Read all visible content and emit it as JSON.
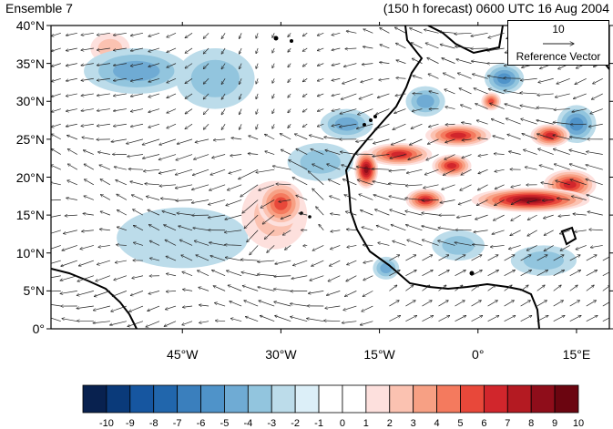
{
  "header": {
    "left_title": "Ensemble 7",
    "right_title": "(150 h forecast) 0600 UTC 16 Aug 2004"
  },
  "reference_vector": {
    "magnitude": "10",
    "label": "Reference Vector"
  },
  "chart_data": {
    "type": "heatmap",
    "description_kind": "map",
    "x_range_deg": [
      -65,
      20
    ],
    "y_range_deg": [
      0,
      40
    ],
    "y_ticks": [
      {
        "value": 40,
        "label": "40°N"
      },
      {
        "value": 35,
        "label": "35°N"
      },
      {
        "value": 30,
        "label": "30°N"
      },
      {
        "value": 25,
        "label": "25°N"
      },
      {
        "value": 20,
        "label": "20°N"
      },
      {
        "value": 15,
        "label": "15°N"
      },
      {
        "value": 10,
        "label": "10°N"
      },
      {
        "value": 5,
        "label": "5°N"
      },
      {
        "value": 0,
        "label": "0°"
      }
    ],
    "x_ticks": [
      {
        "value": -45,
        "label": "45°W"
      },
      {
        "value": -30,
        "label": "30°W"
      },
      {
        "value": -15,
        "label": "15°W"
      },
      {
        "value": 0,
        "label": "0°"
      },
      {
        "value": 15,
        "label": "15°E"
      }
    ],
    "colorbar": {
      "labels": [
        "-10",
        "-9",
        "-8",
        "-7",
        "-6",
        "-5",
        "-4",
        "-3",
        "-2",
        "-1",
        "0",
        "1",
        "2",
        "3",
        "4",
        "5",
        "6",
        "7",
        "8",
        "9",
        "10"
      ],
      "colors": [
        "#08214f",
        "#0a3a7a",
        "#1656a0",
        "#2166ac",
        "#3a7fbd",
        "#4f93c9",
        "#6fabd4",
        "#92c5de",
        "#bcdcea",
        "#dceff8",
        "#ffffff",
        "#ffffff",
        "#fde0dd",
        "#fbc2b1",
        "#f7a084",
        "#f47a5e",
        "#e8483a",
        "#d1262c",
        "#b41a22",
        "#8f0d1a",
        "#6b0510"
      ]
    },
    "anomaly_blobs": [
      {
        "lon": -52,
        "lat": 34,
        "rx": 8,
        "ry": 3,
        "value": -3
      },
      {
        "lon": -40,
        "lat": 33,
        "rx": 6,
        "ry": 4,
        "value": -2
      },
      {
        "lon": -56,
        "lat": 37,
        "rx": 3,
        "ry": 2,
        "value": 2
      },
      {
        "lon": -30,
        "lat": 16.5,
        "rx": 3.5,
        "ry": 3,
        "value": 5
      },
      {
        "lon": -31,
        "lat": 15,
        "rx": 5,
        "ry": 4.5,
        "value": 2
      },
      {
        "lon": -24,
        "lat": 22,
        "rx": 5,
        "ry": 2.5,
        "value": -2
      },
      {
        "lon": -20,
        "lat": 27,
        "rx": 4,
        "ry": 2,
        "value": -3
      },
      {
        "lon": -17,
        "lat": 21,
        "rx": 1.8,
        "ry": 2.5,
        "value": 8
      },
      {
        "lon": -12,
        "lat": 23,
        "rx": 5,
        "ry": 1.5,
        "value": 6
      },
      {
        "lon": -3,
        "lat": 25.5,
        "rx": 5,
        "ry": 1.5,
        "value": 6
      },
      {
        "lon": 8,
        "lat": 17,
        "rx": 9,
        "ry": 1.6,
        "value": 8
      },
      {
        "lon": 14,
        "lat": 19,
        "rx": 4,
        "ry": 2,
        "value": 6
      },
      {
        "lon": -4,
        "lat": 21.5,
        "rx": 3,
        "ry": 1.5,
        "value": 6
      },
      {
        "lon": -8,
        "lat": 17,
        "rx": 3,
        "ry": 1.5,
        "value": 6
      },
      {
        "lon": 11,
        "lat": 25.5,
        "rx": 3,
        "ry": 1.5,
        "value": 6
      },
      {
        "lon": 2,
        "lat": 30,
        "rx": 1.5,
        "ry": 1.2,
        "value": 5
      },
      {
        "lon": -8,
        "lat": 30,
        "rx": 3,
        "ry": 2,
        "value": -3
      },
      {
        "lon": 4,
        "lat": 33,
        "rx": 3,
        "ry": 2,
        "value": -4
      },
      {
        "lon": 15,
        "lat": 27,
        "rx": 3,
        "ry": 2.5,
        "value": -4
      },
      {
        "lon": -14,
        "lat": 8,
        "rx": 2,
        "ry": 1.5,
        "value": -3
      },
      {
        "lon": -3,
        "lat": 11,
        "rx": 4,
        "ry": 2,
        "value": -2
      },
      {
        "lon": 10,
        "lat": 9,
        "rx": 5,
        "ry": 2,
        "value": -2
      },
      {
        "lon": -45,
        "lat": 12,
        "rx": 10,
        "ry": 4,
        "value": -1
      }
    ]
  }
}
